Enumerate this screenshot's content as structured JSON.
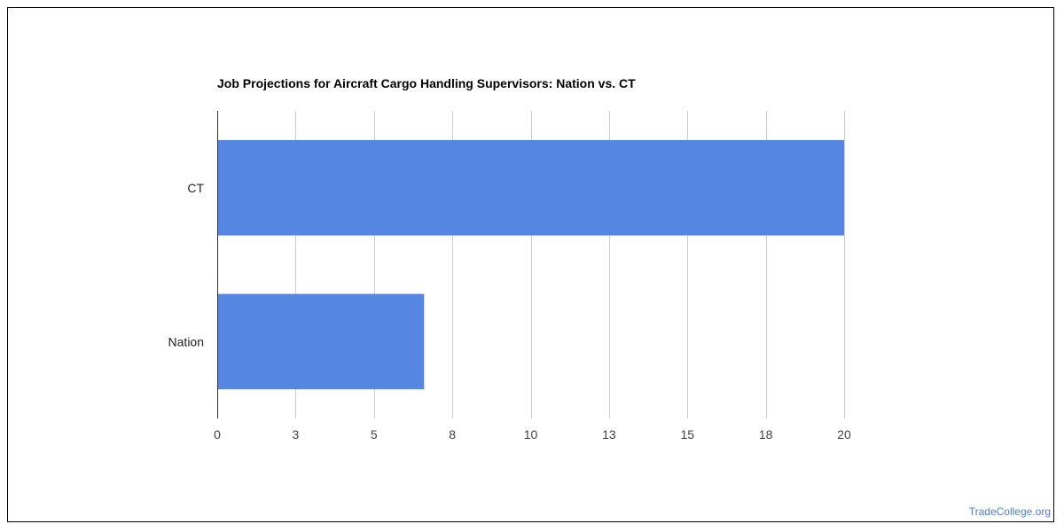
{
  "chart_data": {
    "type": "bar",
    "orientation": "horizontal",
    "title": "Job Projections for Aircraft Cargo Handling Supervisors: Nation vs. CT",
    "categories": [
      "CT",
      "Nation"
    ],
    "values": [
      20,
      6.6
    ],
    "xlim": [
      0,
      20
    ],
    "tick_values": [
      0,
      2.5,
      5,
      7.5,
      10,
      12.5,
      15,
      17.5,
      20
    ],
    "tick_labels": [
      "0",
      "3",
      "5",
      "8",
      "10",
      "13",
      "15",
      "18",
      "20"
    ],
    "xlabel": "",
    "ylabel": "",
    "grid": "vertical",
    "bar_color": "#5486e2",
    "grid_color": "#cccccc"
  },
  "watermark": {
    "text": "TradeCollege.org",
    "color": "#4a7fd6"
  }
}
